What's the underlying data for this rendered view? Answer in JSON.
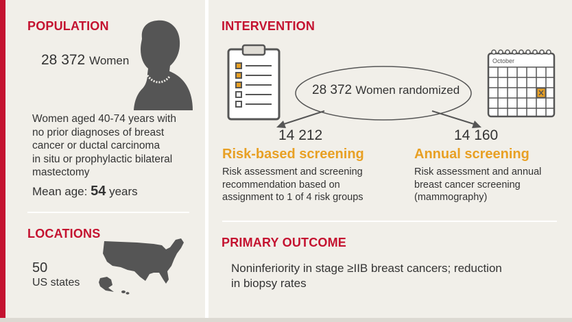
{
  "population": {
    "heading": "POPULATION",
    "count": "28 372",
    "count_label": "Women",
    "description": [
      "Women aged 40-74 years with",
      "no prior diagnoses of breast",
      "cancer or ductal carcinoma",
      "in situ or prophylactic bilateral",
      "mastectomy"
    ],
    "mean_age_label": "Mean age:",
    "mean_age_value": "54",
    "mean_age_unit": "years"
  },
  "locations": {
    "heading": "LOCATIONS",
    "count": "50",
    "label": "US states"
  },
  "intervention": {
    "heading": "INTERVENTION",
    "randomized_count": "28 372",
    "randomized_label": "Women randomized",
    "calendar_month": "October",
    "arms": [
      {
        "count": "14 212",
        "title": "Risk-based screening",
        "description": [
          "Risk assessment and screening",
          "recommendation based on",
          "assignment to 1 of 4 risk groups"
        ]
      },
      {
        "count": "14 160",
        "title": "Annual screening",
        "description": [
          "Risk assessment and annual",
          "breast cancer screening",
          "(mammography)"
        ]
      }
    ]
  },
  "primary_outcome": {
    "heading": "PRIMARY OUTCOME",
    "text": [
      "Noninferiority in stage ≥IIB breast cancers; reduction",
      "in biopsy rates"
    ]
  },
  "colors": {
    "accent_red": "#c41230",
    "arm_orange": "#e8a024",
    "icon_gray": "#555555"
  }
}
